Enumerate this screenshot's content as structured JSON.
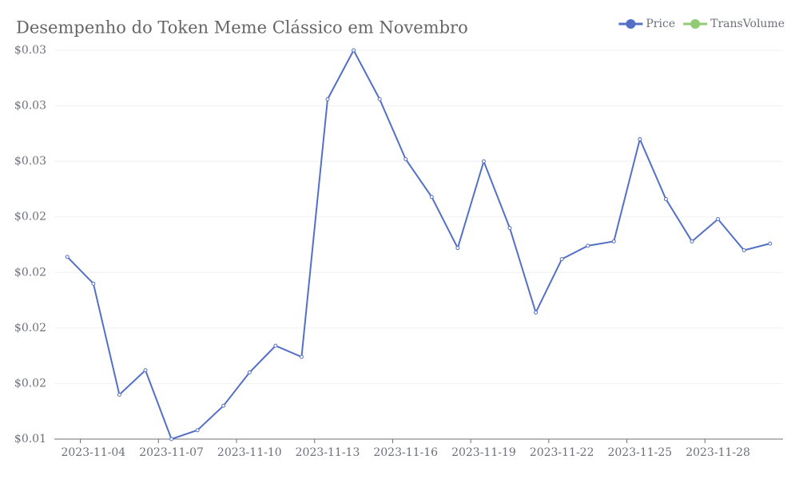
{
  "chart_data": {
    "type": "line",
    "title": "Desempenho do Token Meme Clássico em Novembro",
    "categories": [
      null,
      "2023-11-04",
      null,
      null,
      "2023-11-07",
      null,
      null,
      "2023-11-10",
      null,
      null,
      "2023-11-13",
      null,
      null,
      "2023-11-16",
      null,
      null,
      "2023-11-19",
      null,
      null,
      "2023-11-22",
      null,
      null,
      "2023-11-25",
      null,
      null,
      "2023-11-28",
      null,
      null
    ],
    "series": [
      {
        "name": "Price",
        "color": "#5470c6",
        "values": [
          0.0207,
          0.0195,
          0.0145,
          0.0156,
          0.0125,
          0.0129,
          0.014,
          0.0155,
          0.0167,
          0.0162,
          0.0278,
          0.03,
          0.0278,
          0.0251,
          0.0234,
          0.0211,
          0.025,
          0.022,
          0.0182,
          0.0206,
          0.0212,
          0.0214,
          0.026,
          0.0233,
          0.0214,
          0.0224,
          0.021,
          0.0213
        ]
      },
      {
        "name": "TransVolume",
        "color": "#91cc75",
        "values": [
          null,
          null,
          null,
          null,
          null,
          null,
          null,
          null,
          null,
          null,
          null,
          null,
          null,
          null,
          null,
          null,
          null,
          null,
          null,
          null,
          null,
          null,
          null,
          null,
          null,
          null,
          null,
          null
        ]
      }
    ],
    "ylim": [
      0.0125,
      0.03
    ],
    "yticks": [
      {
        "value": 0.0125,
        "label": "$0.01"
      },
      {
        "value": 0.015,
        "label": "$0.02"
      },
      {
        "value": 0.0175,
        "label": "$0.02"
      },
      {
        "value": 0.02,
        "label": "$0.02"
      },
      {
        "value": 0.0225,
        "label": "$0.02"
      },
      {
        "value": 0.025,
        "label": "$0.03"
      },
      {
        "value": 0.0275,
        "label": "$0.03"
      },
      {
        "value": 0.03,
        "label": "$0.03"
      }
    ],
    "grid": true,
    "legend": "top-right"
  }
}
